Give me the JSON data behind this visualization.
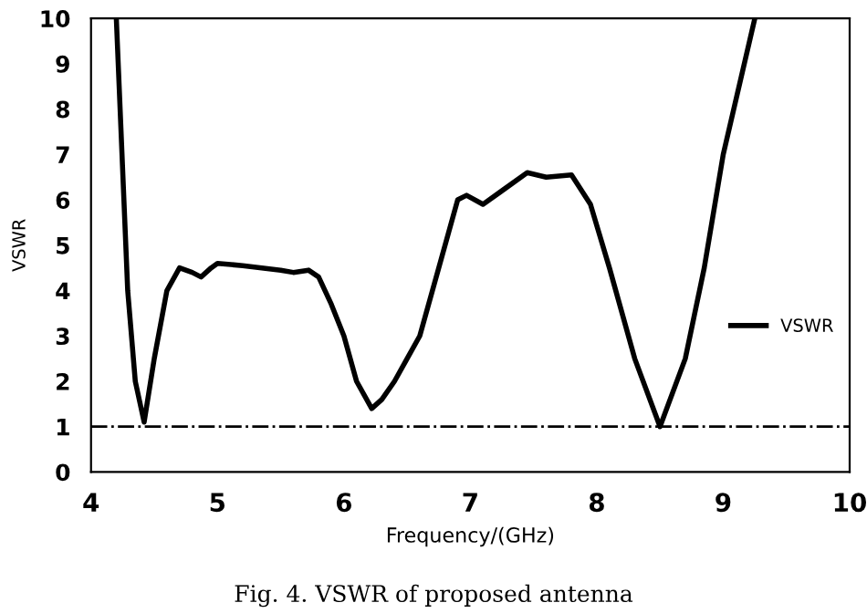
{
  "chart_data": {
    "type": "line",
    "xlabel": "Frequency/(GHz)",
    "ylabel": "VSWR",
    "xlim": [
      4,
      10
    ],
    "ylim": [
      0,
      10
    ],
    "xticks": [
      4,
      5,
      6,
      7,
      8,
      9,
      10
    ],
    "yticks": [
      0,
      1,
      2,
      3,
      4,
      5,
      6,
      7,
      8,
      9,
      10
    ],
    "grid": false,
    "legend": "right",
    "marker": "none",
    "line_style": "solid",
    "series": [
      {
        "name": "VSWR",
        "color": "#000000",
        "x": [
          4.2,
          4.29,
          4.35,
          4.42,
          4.5,
          4.6,
          4.7,
          4.8,
          4.87,
          4.95,
          5.0,
          5.2,
          5.5,
          5.6,
          5.72,
          5.8,
          5.9,
          6.0,
          6.1,
          6.22,
          6.3,
          6.4,
          6.5,
          6.6,
          6.75,
          6.9,
          6.97,
          7.1,
          7.25,
          7.45,
          7.6,
          7.8,
          7.95,
          8.1,
          8.3,
          8.5,
          8.7,
          8.85,
          9.0,
          9.25
        ],
        "values": [
          10,
          4,
          2,
          1.1,
          2.5,
          4.0,
          4.5,
          4.4,
          4.3,
          4.5,
          4.6,
          4.55,
          4.45,
          4.4,
          4.45,
          4.3,
          3.7,
          3.0,
          2.0,
          1.4,
          1.6,
          2.0,
          2.5,
          3.0,
          4.5,
          6.0,
          6.1,
          5.9,
          6.2,
          6.6,
          6.5,
          6.55,
          5.9,
          4.5,
          2.5,
          1.0,
          2.5,
          4.5,
          7.0,
          10
        ]
      }
    ],
    "ref_lines": [
      {
        "axis": "y",
        "value": 1,
        "color": "#000000",
        "line_style": "dashdot"
      }
    ],
    "annotations": [
      "Fig. 4. VSWR of proposed antenna"
    ]
  }
}
